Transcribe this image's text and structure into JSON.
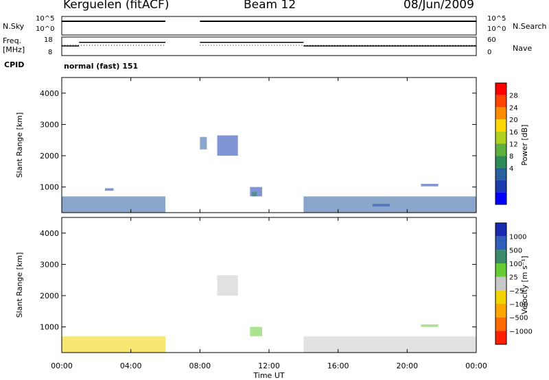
{
  "header": {
    "station": "Kerguelen (fitACF)",
    "beam": "Beam 12",
    "date": "08/Jun/2009"
  },
  "side_labels": {
    "nsky": "N.Sky",
    "freq_line1": "Freq.",
    "freq_line2": "[MHz]",
    "cpid": "CPID",
    "nsearch": "N.Search",
    "nave": "Nave"
  },
  "top_panels": {
    "nsky_ticks": [
      "10^5",
      "10^0"
    ],
    "freq_ticks": [
      "18",
      "8"
    ],
    "nsearch_ticks": [
      "10^5",
      "10^0"
    ],
    "nave_ticks": [
      "60",
      "0"
    ],
    "cpid_text": "normal (fast) 151"
  },
  "power_panel": {
    "ylabel": "Slant Range [km]",
    "yticks": [
      "4000",
      "3000",
      "2000",
      "1000"
    ],
    "colorbar_label": "Power [dB]",
    "colorbar_ticks": [
      "28",
      "24",
      "20",
      "16",
      "12",
      "8",
      "4"
    ],
    "colorbar_colors": [
      "#ff0000",
      "#ff4500",
      "#ff8c00",
      "#ffd700",
      "#b0d020",
      "#60b040",
      "#2e8b57",
      "#2a5fa0",
      "#1a3cb0",
      "#0000ff"
    ]
  },
  "velocity_panel": {
    "ylabel": "Slant Range [km]",
    "yticks": [
      "4000",
      "3000",
      "2000",
      "1000"
    ],
    "colorbar_label": "Velocity [m s⁻¹]",
    "colorbar_ticks": [
      "1000",
      "500",
      "100",
      "25",
      "−25",
      "−100",
      "−500",
      "−1000"
    ],
    "colorbar_colors": [
      "#1a2ab0",
      "#2f5fb8",
      "#3a8a6a",
      "#66cc33",
      "#c8c8c8",
      "#f2d200",
      "#ffa500",
      "#ff6a00",
      "#ff2000"
    ],
    "ground_scatter_color": "#c8c8c8"
  },
  "xaxis": {
    "ticks": [
      "00:00",
      "04:00",
      "08:00",
      "12:00",
      "16:00",
      "20:00",
      "00:00"
    ],
    "label": "Time UT"
  },
  "chart_data": {
    "type": "heatmap",
    "x_range_hours": [
      0,
      24
    ],
    "y_range_km": [
      180,
      4500
    ],
    "data_gap_hours": [
      6,
      8
    ],
    "frequency_segments_mhz": [
      {
        "start": 0,
        "end": 1,
        "value": 13
      },
      {
        "start": 1,
        "end": 6,
        "value": 15
      },
      {
        "start": 8,
        "end": 14,
        "value": 15
      },
      {
        "start": 14,
        "end": 24,
        "value": 13
      }
    ],
    "power_patches": [
      {
        "t0": 9.0,
        "t1": 10.2,
        "r0": 2000,
        "r1": 2650,
        "color": "#1a3cb0"
      },
      {
        "t0": 8.0,
        "t1": 8.4,
        "r0": 2200,
        "r1": 2600,
        "color": "#2a5fa0"
      },
      {
        "t0": 10.9,
        "t1": 11.6,
        "r0": 700,
        "r1": 1000,
        "color": "#1a3cb0"
      },
      {
        "t0": 11.0,
        "t1": 11.3,
        "r0": 700,
        "r1": 850,
        "color": "#2e8b57"
      },
      {
        "t0": 2.5,
        "t1": 3.0,
        "r0": 880,
        "r1": 960,
        "color": "#1a3cb0"
      },
      {
        "t0": 20.8,
        "t1": 21.8,
        "r0": 1020,
        "r1": 1100,
        "color": "#1a3cb0"
      },
      {
        "t0": 18.0,
        "t1": 19.0,
        "r0": 380,
        "r1": 460,
        "color": "#1a3cb0"
      },
      {
        "t0": 0.0,
        "t1": 6.0,
        "r0": 180,
        "r1": 700,
        "color": "#2a5fa0"
      },
      {
        "t0": 14.0,
        "t1": 24.0,
        "r0": 180,
        "r1": 700,
        "color": "#2a5fa0"
      }
    ],
    "velocity_patches": [
      {
        "t0": 9.0,
        "t1": 10.2,
        "r0": 2000,
        "r1": 2650,
        "color": "#c8c8c8"
      },
      {
        "t0": 10.9,
        "t1": 11.6,
        "r0": 700,
        "r1": 1000,
        "color": "#66cc33"
      },
      {
        "t0": 20.8,
        "t1": 21.8,
        "r0": 1000,
        "r1": 1080,
        "color": "#66cc33"
      },
      {
        "t0": 0.0,
        "t1": 6.0,
        "r0": 180,
        "r1": 700,
        "color": "#f2d200"
      },
      {
        "t0": 14.0,
        "t1": 24.0,
        "r0": 180,
        "r1": 700,
        "color": "#c8c8c8"
      }
    ]
  }
}
